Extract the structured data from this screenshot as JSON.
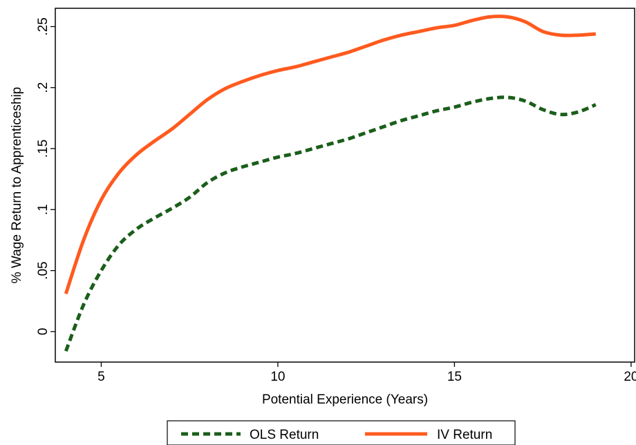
{
  "chart_data": {
    "type": "line",
    "title": "",
    "xlabel": "Potential Experience (Years)",
    "ylabel": "% Wage Return to Apprenticeship",
    "xlim": [
      3.7,
      20.1
    ],
    "ylim": [
      -0.025,
      0.265
    ],
    "xticks": [
      5,
      10,
      15,
      20
    ],
    "xtick_labels": [
      "5",
      "10",
      "15",
      "20"
    ],
    "yticks": [
      0,
      0.05,
      0.1,
      0.15,
      0.2,
      0.25
    ],
    "ytick_labels": [
      "0",
      ".05",
      ".1",
      ".15",
      ".2",
      ".25"
    ],
    "grid": false,
    "legend_position": "bottom",
    "series": [
      {
        "name": "OLS Return",
        "color": "#1a5e1a",
        "line_style": "dashed",
        "x": [
          4,
          4.5,
          5,
          5.5,
          6,
          6.5,
          7,
          7.5,
          8,
          8.5,
          9,
          9.5,
          10,
          10.5,
          11,
          11.5,
          12,
          12.5,
          13,
          13.5,
          14,
          14.5,
          15,
          15.5,
          16,
          16.5,
          17,
          17.5,
          18,
          18.5,
          19
        ],
        "y": [
          -0.016,
          0.022,
          0.05,
          0.071,
          0.084,
          0.093,
          0.101,
          0.11,
          0.122,
          0.13,
          0.135,
          0.139,
          0.143,
          0.146,
          0.15,
          0.154,
          0.158,
          0.163,
          0.168,
          0.173,
          0.177,
          0.181,
          0.184,
          0.188,
          0.191,
          0.192,
          0.189,
          0.182,
          0.178,
          0.18,
          0.186
        ]
      },
      {
        "name": "IV Return",
        "color": "#ff5a1f",
        "line_style": "solid",
        "x": [
          4,
          4.5,
          5,
          5.5,
          6,
          6.5,
          7,
          7.5,
          8,
          8.5,
          9,
          9.5,
          10,
          10.5,
          11,
          11.5,
          12,
          12.5,
          13,
          13.5,
          14,
          14.5,
          15,
          15.5,
          16,
          16.5,
          17,
          17.5,
          18,
          18.5,
          19
        ],
        "y": [
          0.031,
          0.075,
          0.108,
          0.13,
          0.145,
          0.156,
          0.166,
          0.178,
          0.19,
          0.199,
          0.205,
          0.21,
          0.214,
          0.217,
          0.221,
          0.225,
          0.229,
          0.234,
          0.239,
          0.243,
          0.246,
          0.249,
          0.251,
          0.255,
          0.258,
          0.258,
          0.254,
          0.246,
          0.243,
          0.243,
          0.244
        ]
      }
    ]
  }
}
